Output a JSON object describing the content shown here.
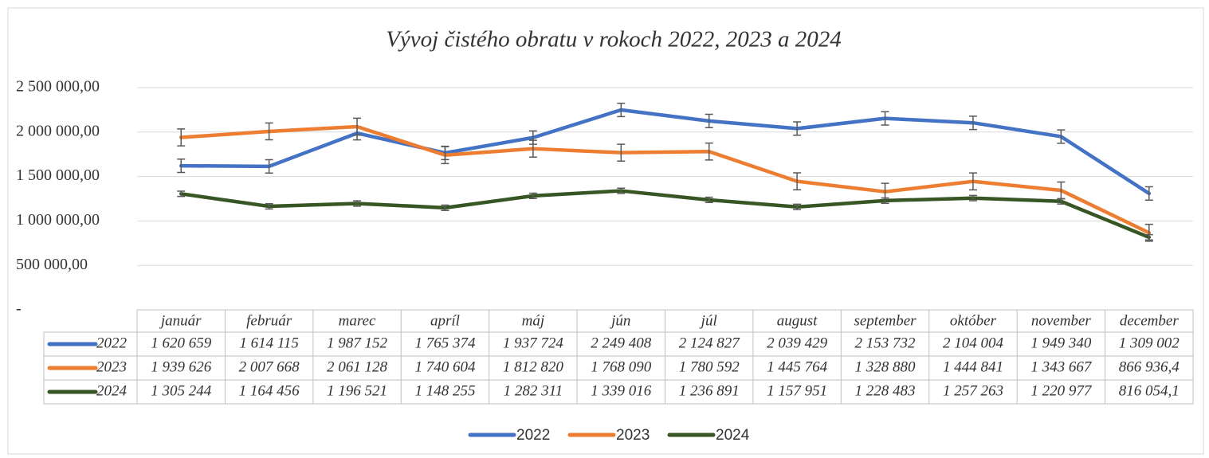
{
  "chart_data": {
    "type": "line",
    "title": "Vývoj čistého obratu v rokoch 2022, 2023 a 2024",
    "categories": [
      "január",
      "február",
      "marec",
      "apríl",
      "máj",
      "jún",
      "júl",
      "august",
      "september",
      "október",
      "november",
      "december"
    ],
    "series": [
      {
        "name": "2022",
        "color": "#4472c4",
        "error": 75000,
        "values": [
          1620659,
          1614115,
          1987152,
          1765374,
          1937724,
          2249408,
          2124827,
          2039429,
          2153732,
          2104004,
          1949340,
          1309002
        ],
        "value_labels": [
          "1 620 659",
          "1 614 115",
          "1 987 152",
          "1 765 374",
          "1 937 724",
          "2 249 408",
          "2 124 827",
          "2 039 429",
          "2 153 732",
          "2 104 004",
          "1 949 340",
          "1 309 002"
        ]
      },
      {
        "name": "2023",
        "color": "#ed7d31",
        "error": 95000,
        "values": [
          1939626,
          2007668,
          2061128,
          1740604,
          1812820,
          1768090,
          1780592,
          1445764,
          1328880,
          1444841,
          1343667,
          866936.4
        ],
        "value_labels": [
          "1 939 626",
          "2 007 668",
          "2 061 128",
          "1 740 604",
          "1 812 820",
          "1 768 090",
          "1 780 592",
          "1 445 764",
          "1 328 880",
          "1 444 841",
          "1 343 667",
          "866 936,4"
        ]
      },
      {
        "name": "2024",
        "color": "#375623",
        "error": 30000,
        "values": [
          1305244,
          1164456,
          1196521,
          1148255,
          1282311,
          1339016,
          1236891,
          1157951,
          1228483,
          1257263,
          1220977,
          816054.1
        ],
        "value_labels": [
          "1 305 244",
          "1 164 456",
          "1 196 521",
          "1 148 255",
          "1 282 311",
          "1 339 016",
          "1 236 891",
          "1 157 951",
          "1 228 483",
          "1 257 263",
          "1 220 977",
          "816 054,1"
        ]
      }
    ],
    "ylim": [
      0,
      2500000
    ],
    "yticks": [
      {
        "value": 0,
        "label": "-"
      },
      {
        "value": 500000,
        "label": "500 000,00"
      },
      {
        "value": 1000000,
        "label": "1 000 000,00"
      },
      {
        "value": 1500000,
        "label": "1 500 000,00"
      },
      {
        "value": 2000000,
        "label": "2 000 000,00"
      },
      {
        "value": 2500000,
        "label": "2 500 000,00"
      }
    ],
    "grid": true,
    "legend": "bottom"
  }
}
